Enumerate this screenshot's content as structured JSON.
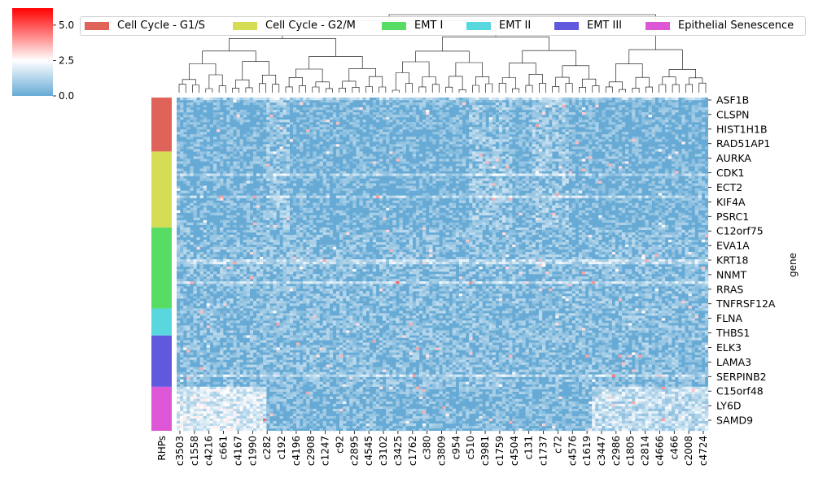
{
  "chart_data": {
    "type": "heatmap",
    "title": "",
    "xlabel": "",
    "ylabel": "gene",
    "row_color_label": "RHPs",
    "colorbar": {
      "ticks": [
        "0.0",
        "2.5",
        "5.0"
      ],
      "range": [
        0,
        6.2
      ],
      "colors": [
        "#66aad5",
        "#ffffff",
        "#ff0000"
      ]
    },
    "legend": {
      "placement": "top",
      "entries": [
        {
          "name": "Cell Cycle - G1/S",
          "color": "#e0635a"
        },
        {
          "name": "Cell Cycle - G2/M",
          "color": "#d5dd55"
        },
        {
          "name": "EMT I",
          "color": "#57dd63"
        },
        {
          "name": "EMT II",
          "color": "#58d7de"
        },
        {
          "name": "EMT III",
          "color": "#6059de"
        },
        {
          "name": "Epithelial Senescence",
          "color": "#dd56d6"
        }
      ]
    },
    "row_groups": [
      {
        "name": "Cell Cycle - G1/S",
        "color": "#e0635a",
        "fraction": 0.162
      },
      {
        "name": "Cell Cycle - G2/M",
        "color": "#d5dd55",
        "fraction": 0.228
      },
      {
        "name": "EMT I",
        "color": "#57dd63",
        "fraction": 0.243
      },
      {
        "name": "EMT II",
        "color": "#58d7de",
        "fraction": 0.081
      },
      {
        "name": "EMT III",
        "color": "#6059de",
        "fraction": 0.154
      },
      {
        "name": "Epithelial Senescence",
        "color": "#dd56d6",
        "fraction": 0.132
      }
    ],
    "row_labels": [
      "ASF1B",
      "CLSPN",
      "HIST1H1B",
      "RAD51AP1",
      "AURKA",
      "CDK1",
      "ECT2",
      "KIF4A",
      "PSRC1",
      "C12orf75",
      "EVA1A",
      "KRT18",
      "NNMT",
      "RRAS",
      "TNFRSF12A",
      "FLNA",
      "THBS1",
      "ELK3",
      "LAMA3",
      "SERPINB2",
      "C15orf48",
      "LY6D",
      "SAMD9"
    ],
    "column_labels": [
      "c3503",
      "c1558",
      "c4216",
      "c661",
      "c4167",
      "c1990",
      "c282",
      "c192",
      "c4196",
      "c2908",
      "c1247",
      "c92",
      "c2895",
      "c4545",
      "c3102",
      "c3425",
      "c1762",
      "c380",
      "c3809",
      "c954",
      "c510",
      "c3981",
      "c1759",
      "c4504",
      "c131",
      "c1737",
      "c72",
      "c4576",
      "c1619",
      "c3447",
      "c2986",
      "c1805",
      "c2814",
      "c4666",
      "c466",
      "c2008",
      "c4724"
    ]
  }
}
